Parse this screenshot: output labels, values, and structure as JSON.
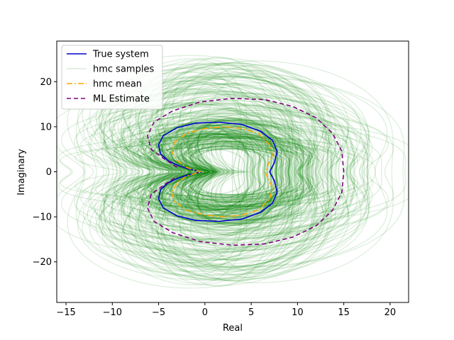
{
  "chart_data": {
    "type": "line",
    "title": "",
    "xlabel": "Real",
    "ylabel": "Imaginary",
    "xlim": [
      -16,
      22
    ],
    "ylim": [
      -29,
      29
    ],
    "xticks": [
      -15,
      -10,
      -5,
      0,
      5,
      10,
      15,
      20
    ],
    "yticks": [
      -20,
      -10,
      0,
      10,
      20
    ],
    "xtick_labels": [
      "−15",
      "−10",
      "−5",
      "0",
      "5",
      "10",
      "15",
      "20"
    ],
    "ytick_labels": [
      "−20",
      "−10",
      "0",
      "10",
      "20"
    ],
    "grid": false,
    "legend_position": "top-left",
    "legend": [
      {
        "label": "True system",
        "color": "#0000cc",
        "dash": "solid"
      },
      {
        "label": "hmc samples",
        "color": "#008000",
        "dash": "solid-faint"
      },
      {
        "label": "hmc mean",
        "color": "#ffa500",
        "dash": "dashdot"
      },
      {
        "label": "ML Estimate",
        "color": "#800080",
        "dash": "dashed"
      }
    ],
    "series": [
      {
        "name": "True system",
        "color": "#0000cc",
        "x": [
          -0.3,
          -1.2,
          -2.0,
          -3.0,
          -4.0,
          -4.8,
          -5.0,
          -4.5,
          -3.0,
          -1.0,
          1.5,
          4.0,
          6.0,
          7.3,
          7.8,
          7.5,
          7.0,
          7.5,
          7.8,
          7.3,
          6.0,
          4.0,
          1.5,
          -1.0,
          -3.0,
          -4.5,
          -5.0,
          -4.8,
          -4.0,
          -3.0,
          -2.0,
          -1.2,
          -0.3
        ],
        "y": [
          0.0,
          0.4,
          0.8,
          1.5,
          2.5,
          4.0,
          6.0,
          8.0,
          9.8,
          10.8,
          11.0,
          10.5,
          9.0,
          7.0,
          4.5,
          2.0,
          0.0,
          -2.0,
          -4.5,
          -7.0,
          -9.0,
          -10.5,
          -11.0,
          -10.8,
          -9.8,
          -8.0,
          -6.0,
          -4.0,
          -2.5,
          -1.5,
          -0.8,
          -0.4,
          0.0
        ]
      },
      {
        "name": "hmc mean",
        "color": "#ffa500",
        "x": [
          -0.3,
          -1.0,
          -2.0,
          -3.0,
          -3.6,
          -3.3,
          -2.0,
          0.0,
          2.0,
          4.0,
          5.8,
          7.0,
          7.3,
          6.8,
          6.5,
          6.8,
          7.3,
          7.0,
          5.8,
          4.0,
          2.0,
          0.0,
          -2.0,
          -3.3,
          -3.6,
          -3.0,
          -2.0,
          -1.0,
          -0.3
        ],
        "y": [
          0.0,
          0.3,
          1.0,
          2.5,
          4.5,
          6.5,
          8.5,
          9.6,
          10.0,
          9.6,
          8.5,
          6.0,
          3.5,
          1.5,
          0.0,
          -1.5,
          -3.5,
          -6.0,
          -8.5,
          -9.6,
          -10.0,
          -9.6,
          -8.5,
          -6.5,
          -4.5,
          -2.5,
          -1.0,
          -0.3,
          0.0
        ]
      },
      {
        "name": "ML Estimate",
        "color": "#800080",
        "x": [
          -3.0,
          -4.5,
          -5.8,
          -6.2,
          -5.5,
          -3.5,
          -0.5,
          3.0,
          6.5,
          9.5,
          12.0,
          13.8,
          14.8,
          15.0,
          14.8,
          13.8,
          12.0,
          9.5,
          6.5,
          3.0,
          -0.5,
          -3.5,
          -5.5,
          -6.2,
          -5.8,
          -4.5,
          -3.0
        ],
        "y": [
          1.0,
          3.0,
          5.0,
          8.0,
          11.0,
          13.5,
          15.5,
          16.3,
          16.0,
          14.5,
          12.0,
          8.5,
          4.5,
          0.0,
          -4.5,
          -8.5,
          -12.0,
          -14.5,
          -16.0,
          -16.3,
          -15.5,
          -13.5,
          -11.0,
          -8.0,
          -5.0,
          -3.0,
          -1.0
        ]
      }
    ],
    "hmc_samples_color": "#008000"
  }
}
